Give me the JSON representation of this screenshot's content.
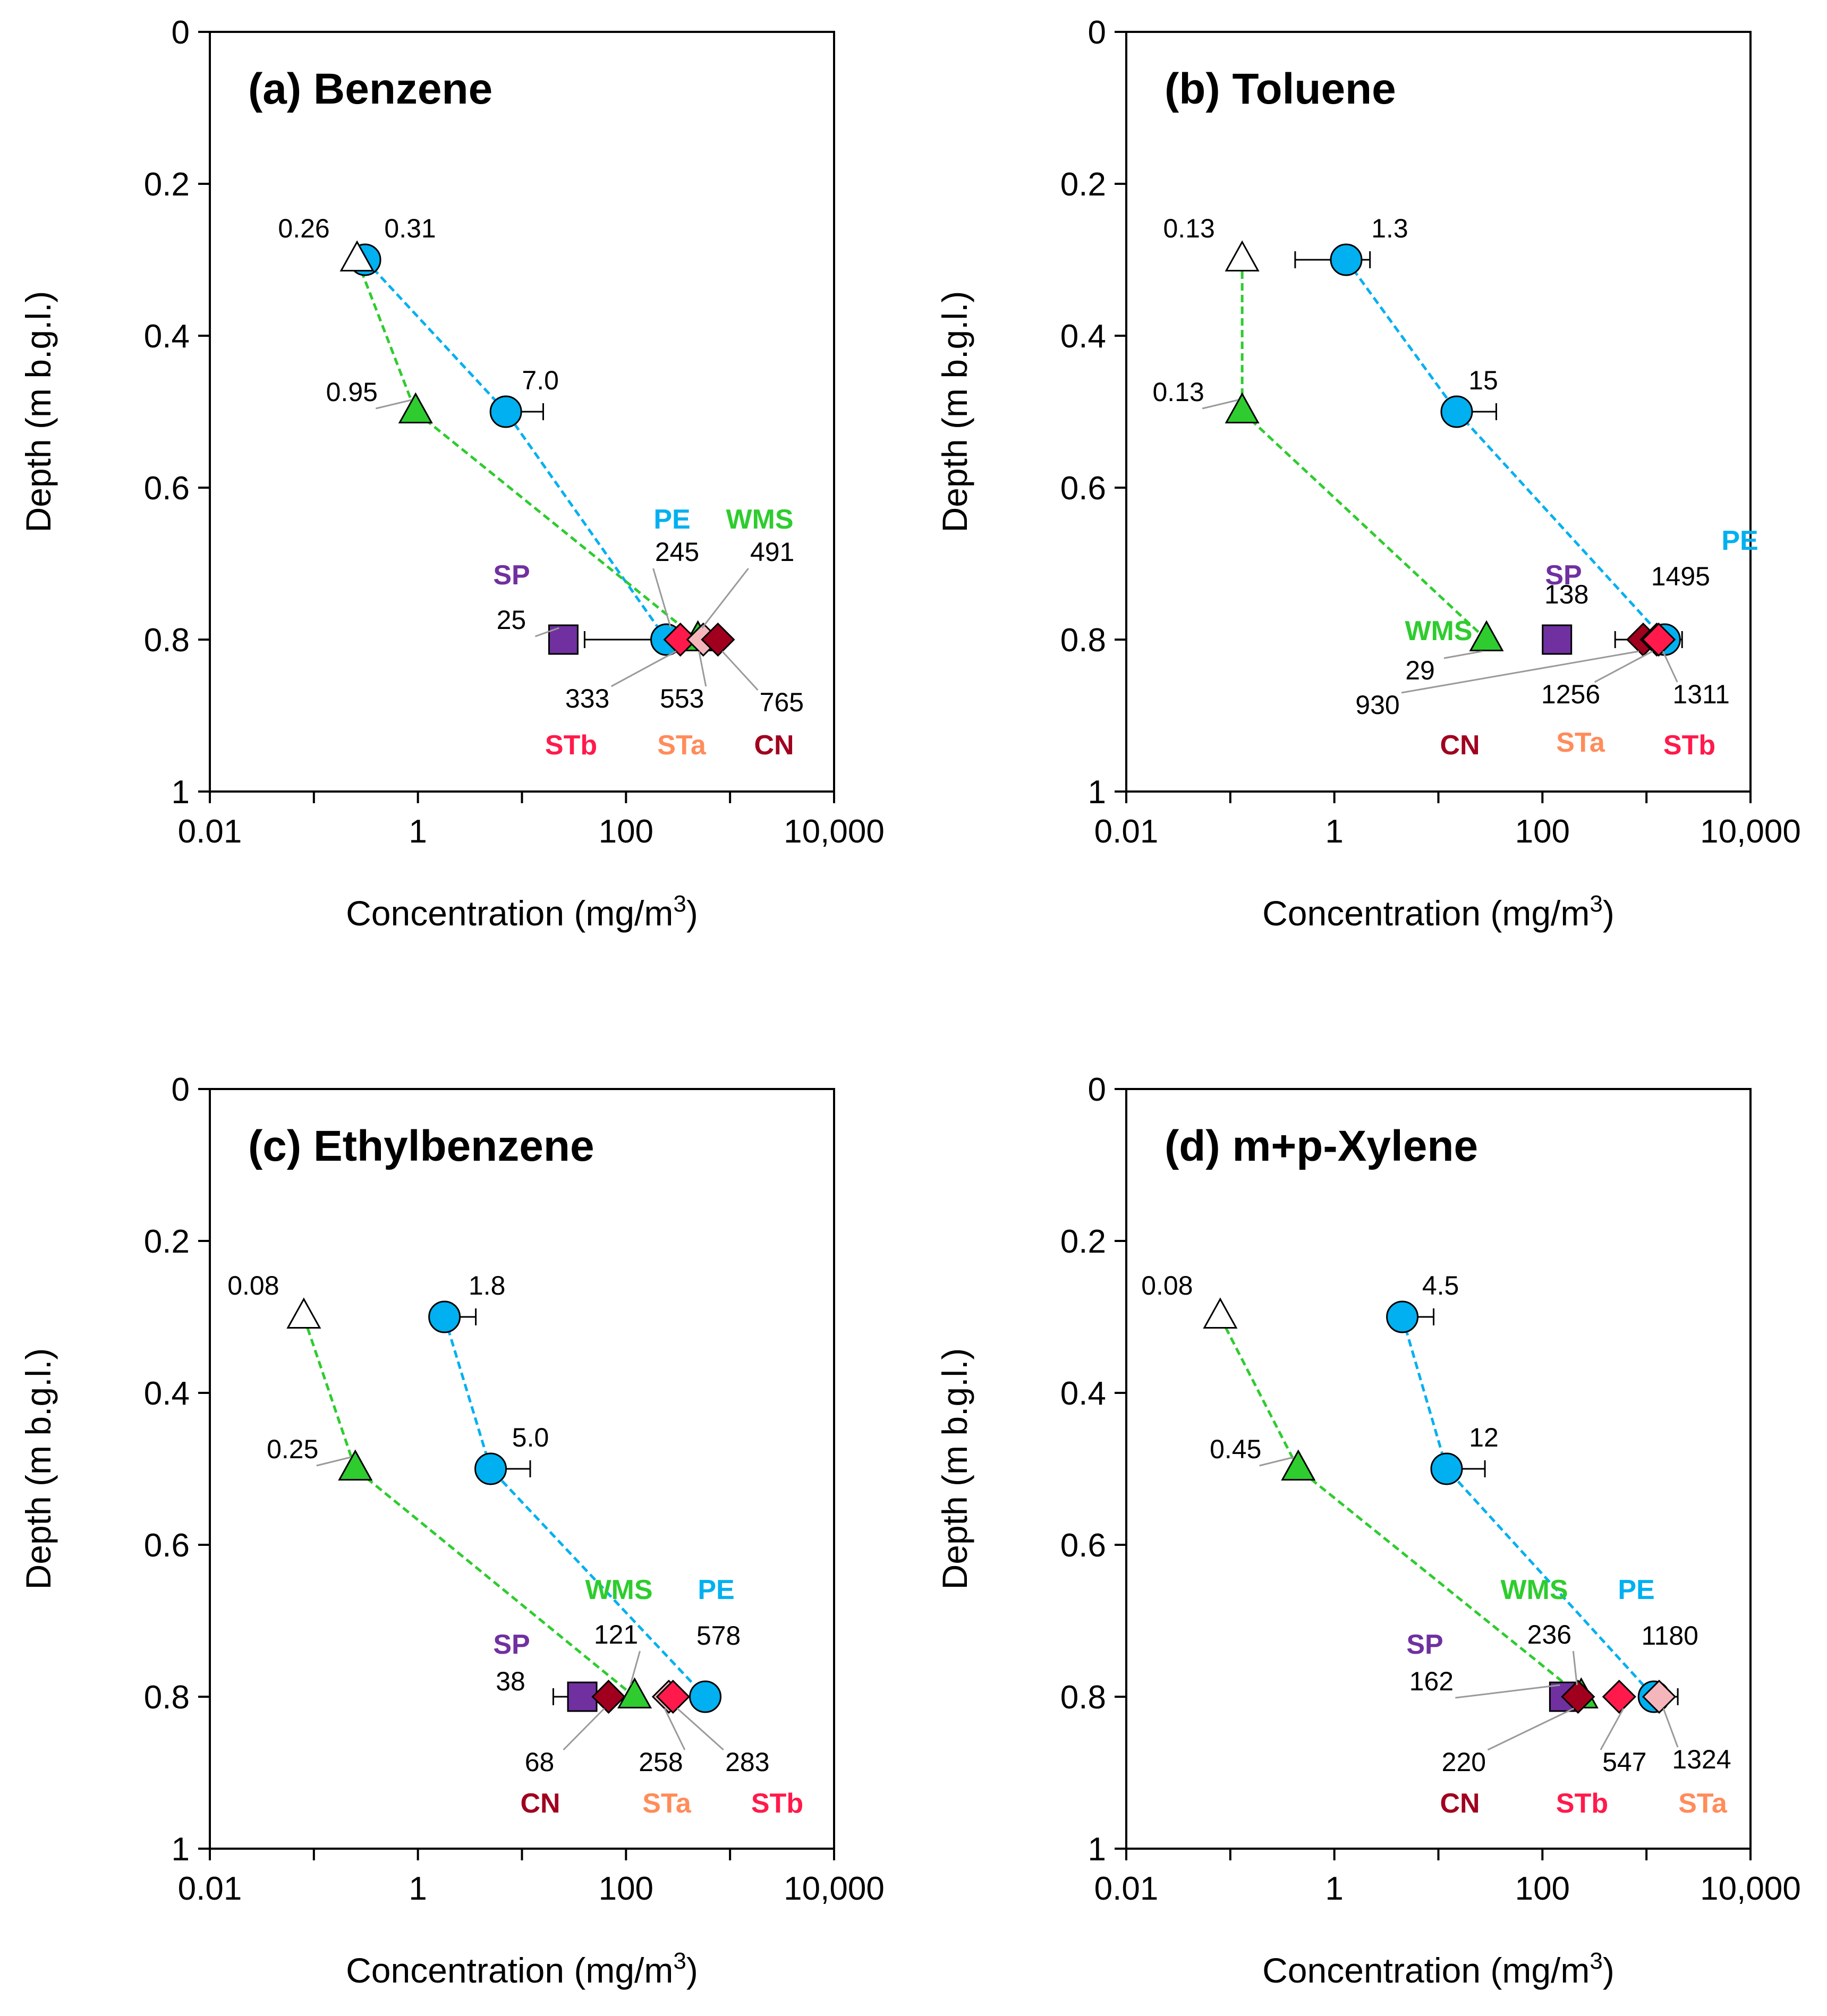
{
  "colors": {
    "PE": "#00b0f0",
    "WMS": "#2ecc2e",
    "SP": "#7030a0",
    "STa": "#ff8c5a",
    "STb": "#ff1a4b",
    "CN": "#a0001e",
    "STa_fill": "#f4b6bb",
    "STb_fill": "#ff1a4b",
    "CN_fill": "#a0001e",
    "open": "#ffffff"
  },
  "chart_data": [
    {
      "type": "scatter",
      "title": "(a) Benzene",
      "xlabel": "Concentration (mg/m",
      "xlabel_sup": "3",
      "xlabel_end": ")",
      "ylabel": "Depth (m b.g.l.)",
      "xscale": "log",
      "xlim": [
        0.01,
        10000
      ],
      "ylim": [
        0,
        1
      ],
      "xticks": [
        "0.01",
        "1",
        "100",
        "10,000"
      ],
      "yticks": [
        "0",
        "0.2",
        "0.4",
        "0.6",
        "0.8",
        "1"
      ],
      "series": [
        {
          "name": "PE",
          "marker": "circle",
          "line": true,
          "points": [
            {
              "x": 0.31,
              "y": 0.3,
              "label": "0.31",
              "err_hi": 0.4
            },
            {
              "x": 7.0,
              "y": 0.5,
              "label": "7.0",
              "err_hi": 16
            },
            {
              "x": 245,
              "y": 0.8,
              "label": "245",
              "err_lo": 40
            }
          ]
        },
        {
          "name": "WMS",
          "marker": "triangle",
          "line": true,
          "points": [
            {
              "x": 0.26,
              "y": 0.3,
              "label": "0.26",
              "open": true
            },
            {
              "x": 0.95,
              "y": 0.5,
              "label": "0.95"
            },
            {
              "x": 491,
              "y": 0.8,
              "label": "491"
            }
          ]
        },
        {
          "name": "SP",
          "marker": "square",
          "points": [
            {
              "x": 25,
              "y": 0.8,
              "label": "25"
            }
          ]
        },
        {
          "name": "STb",
          "marker": "diamond",
          "points": [
            {
              "x": 333,
              "y": 0.8,
              "label": "333"
            }
          ]
        },
        {
          "name": "STa",
          "marker": "diamond",
          "points": [
            {
              "x": 553,
              "y": 0.8,
              "label": "553"
            }
          ]
        },
        {
          "name": "CN",
          "marker": "diamond",
          "points": [
            {
              "x": 765,
              "y": 0.8,
              "label": "765"
            }
          ]
        }
      ],
      "method_labels": [
        "PE",
        "WMS",
        "SP",
        "STb",
        "STa",
        "CN"
      ]
    },
    {
      "type": "scatter",
      "title": "(b) Toluene",
      "xlabel": "Concentration (mg/m",
      "xlabel_sup": "3",
      "xlabel_end": ")",
      "ylabel": "Depth (m b.g.l.)",
      "xscale": "log",
      "xlim": [
        0.01,
        10000
      ],
      "ylim": [
        0,
        1
      ],
      "xticks": [
        "0.01",
        "1",
        "100",
        "10,000"
      ],
      "yticks": [
        "0",
        "0.2",
        "0.4",
        "0.6",
        "0.8",
        "1"
      ],
      "series": [
        {
          "name": "PE",
          "marker": "circle",
          "line": true,
          "points": [
            {
              "x": 1.3,
              "y": 0.3,
              "label": "1.3",
              "err_lo": 0.42,
              "err_hi": 2.2
            },
            {
              "x": 15,
              "y": 0.5,
              "label": "15",
              "err_hi": 36
            },
            {
              "x": 1495,
              "y": 0.8,
              "label": "1495",
              "err_hi": 2200
            }
          ]
        },
        {
          "name": "WMS",
          "marker": "triangle",
          "line": true,
          "points": [
            {
              "x": 0.13,
              "y": 0.3,
              "label": "0.13",
              "open": true
            },
            {
              "x": 0.13,
              "y": 0.5,
              "label": "0.13"
            },
            {
              "x": 29,
              "y": 0.8,
              "label": "29"
            }
          ]
        },
        {
          "name": "SP",
          "marker": "square",
          "points": [
            {
              "x": 138,
              "y": 0.8,
              "label": "138"
            }
          ]
        },
        {
          "name": "CN",
          "marker": "diamond",
          "points": [
            {
              "x": 930,
              "y": 0.8,
              "label": "930",
              "err_lo": 500
            }
          ]
        },
        {
          "name": "STa",
          "marker": "diamond",
          "points": [
            {
              "x": 1256,
              "y": 0.8,
              "label": "1256"
            }
          ]
        },
        {
          "name": "STb",
          "marker": "diamond",
          "points": [
            {
              "x": 1311,
              "y": 0.8,
              "label": "1311"
            }
          ]
        }
      ],
      "method_labels": [
        "PE",
        "SP",
        "WMS",
        "CN",
        "STa",
        "STb"
      ]
    },
    {
      "type": "scatter",
      "title": "(c) Ethylbenzene",
      "xlabel": "Concentration (mg/m",
      "xlabel_sup": "3",
      "xlabel_end": ")",
      "ylabel": "Depth (m b.g.l.)",
      "xscale": "log",
      "xlim": [
        0.01,
        10000
      ],
      "ylim": [
        0,
        1
      ],
      "xticks": [
        "0.01",
        "1",
        "100",
        "10,000"
      ],
      "yticks": [
        "0",
        "0.2",
        "0.4",
        "0.6",
        "0.8",
        "1"
      ],
      "series": [
        {
          "name": "PE",
          "marker": "circle",
          "line": true,
          "points": [
            {
              "x": 1.8,
              "y": 0.3,
              "label": "1.8",
              "err_hi": 3.6
            },
            {
              "x": 5.0,
              "y": 0.5,
              "label": "5.0",
              "err_hi": 12
            },
            {
              "x": 578,
              "y": 0.8,
              "label": "578"
            }
          ]
        },
        {
          "name": "WMS",
          "marker": "triangle",
          "line": true,
          "points": [
            {
              "x": 0.08,
              "y": 0.3,
              "label": "0.08",
              "open": true
            },
            {
              "x": 0.25,
              "y": 0.5,
              "label": "0.25"
            },
            {
              "x": 121,
              "y": 0.8,
              "label": "121"
            }
          ]
        },
        {
          "name": "SP",
          "marker": "square",
          "points": [
            {
              "x": 38,
              "y": 0.8,
              "label": "38",
              "err_lo": 20
            }
          ]
        },
        {
          "name": "CN",
          "marker": "diamond",
          "points": [
            {
              "x": 68,
              "y": 0.8,
              "label": "68"
            }
          ]
        },
        {
          "name": "STa",
          "marker": "diamond",
          "points": [
            {
              "x": 258,
              "y": 0.8,
              "label": "258"
            }
          ]
        },
        {
          "name": "STb",
          "marker": "diamond",
          "points": [
            {
              "x": 283,
              "y": 0.8,
              "label": "283"
            }
          ]
        }
      ],
      "method_labels": [
        "WMS",
        "PE",
        "SP",
        "CN",
        "STa",
        "STb"
      ]
    },
    {
      "type": "scatter",
      "title": "(d) m+p-Xylene",
      "xlabel": "Concentration (mg/m",
      "xlabel_sup": "3",
      "xlabel_end": ")",
      "ylabel": "Depth (m b.g.l.)",
      "xscale": "log",
      "xlim": [
        0.01,
        10000
      ],
      "ylim": [
        0,
        1
      ],
      "xticks": [
        "0.01",
        "1",
        "100",
        "10,000"
      ],
      "yticks": [
        "0",
        "0.2",
        "0.4",
        "0.6",
        "0.8",
        "1"
      ],
      "series": [
        {
          "name": "PE",
          "marker": "circle",
          "line": true,
          "points": [
            {
              "x": 4.5,
              "y": 0.3,
              "label": "4.5",
              "err_hi": 9
            },
            {
              "x": 12,
              "y": 0.5,
              "label": "12",
              "err_hi": 28
            },
            {
              "x": 1180,
              "y": 0.8,
              "label": "1180",
              "err_hi": 2000
            }
          ]
        },
        {
          "name": "WMS",
          "marker": "triangle",
          "line": true,
          "points": [
            {
              "x": 0.08,
              "y": 0.3,
              "label": "0.08",
              "open": true
            },
            {
              "x": 0.45,
              "y": 0.5,
              "label": "0.45"
            },
            {
              "x": 236,
              "y": 0.8,
              "label": "236"
            }
          ]
        },
        {
          "name": "SP",
          "marker": "square",
          "points": [
            {
              "x": 162,
              "y": 0.8,
              "label": "162"
            }
          ]
        },
        {
          "name": "CN",
          "marker": "diamond",
          "points": [
            {
              "x": 220,
              "y": 0.8,
              "label": "220"
            }
          ]
        },
        {
          "name": "STb",
          "marker": "diamond",
          "points": [
            {
              "x": 547,
              "y": 0.8,
              "label": "547"
            }
          ]
        },
        {
          "name": "STa",
          "marker": "diamond",
          "points": [
            {
              "x": 1324,
              "y": 0.8,
              "label": "1324"
            }
          ]
        }
      ],
      "method_labels": [
        "WMS",
        "PE",
        "SP",
        "CN",
        "STb",
        "STa"
      ]
    }
  ]
}
